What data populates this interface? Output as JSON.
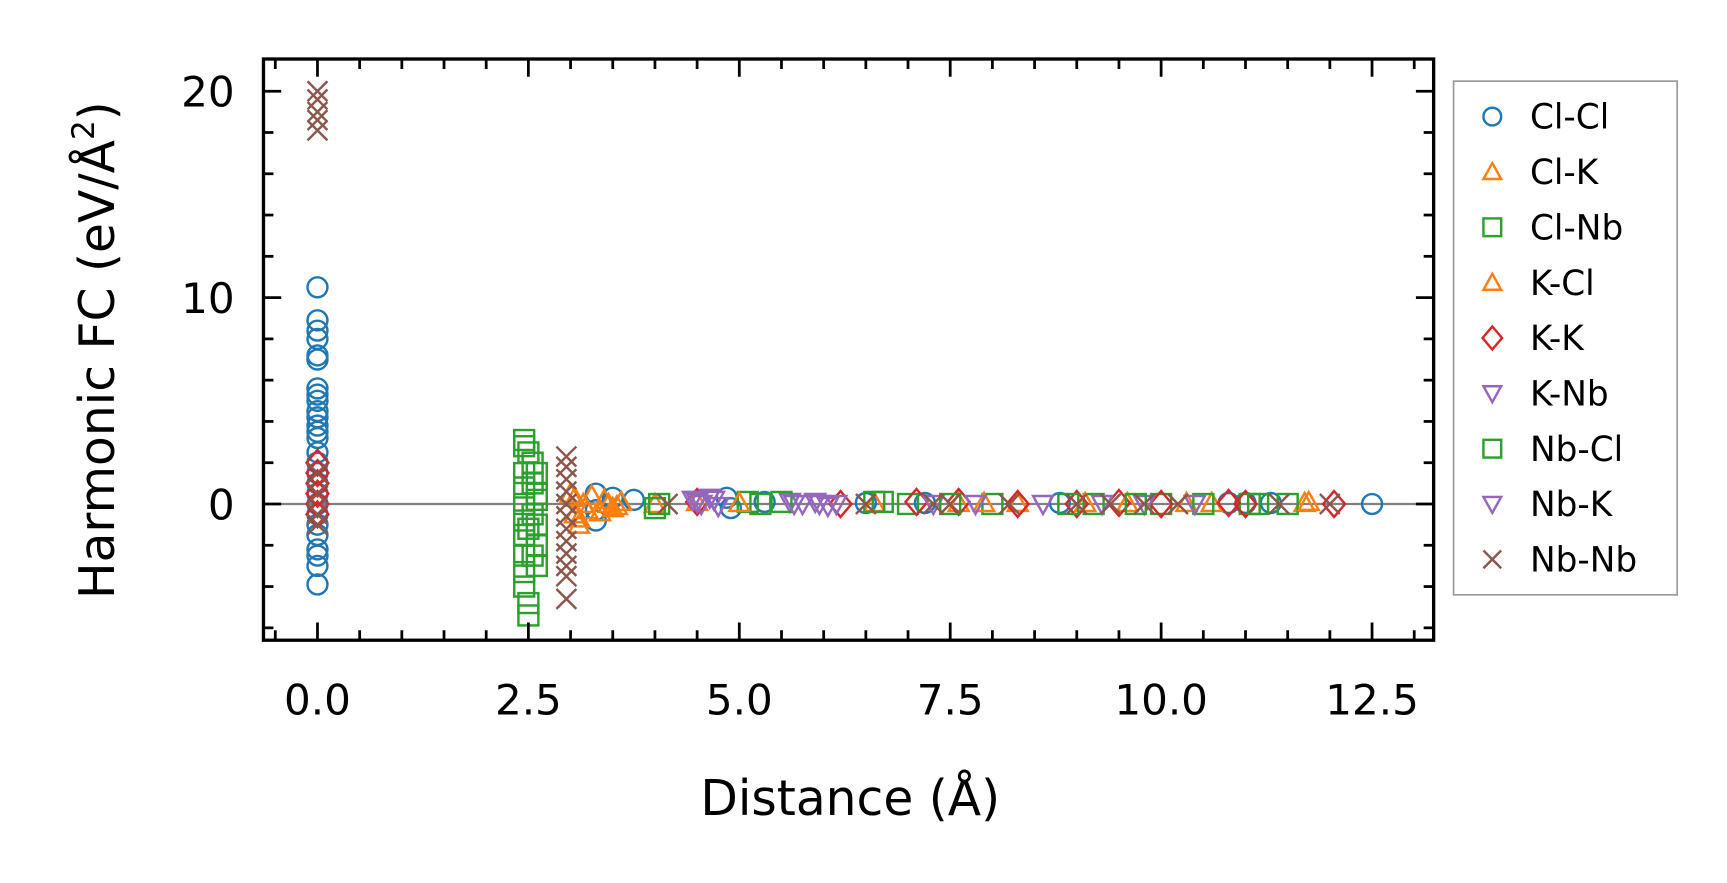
{
  "chart_data": {
    "type": "scatter",
    "title": "",
    "xlabel": "Distance (Å)",
    "ylabel_main": "Harmonic FC (eV/Å",
    "ylabel_sup": "2",
    "ylabel_close": ")",
    "ylabel": "Harmonic FC (eV/Å²)",
    "xlim": [
      -0.64,
      13.23
    ],
    "ylim": [
      -6.6,
      21.56
    ],
    "xticks": [
      0.0,
      2.5,
      5.0,
      7.5,
      10.0,
      12.5
    ],
    "xtick_labels": [
      "0.0",
      "2.5",
      "5.0",
      "7.5",
      "10.0",
      "12.5"
    ],
    "yticks": [
      0,
      10,
      20
    ],
    "ytick_labels": [
      "0",
      "10",
      "20"
    ],
    "x_minor_step": 0.5,
    "y_minor_step": 2,
    "zero_line": {
      "y": 0,
      "color": "#808080"
    },
    "grid": false,
    "legend_position": "outside-right",
    "series": [
      {
        "name": "Cl-Cl",
        "marker": "circle",
        "filled": false,
        "color": "#1f77b4",
        "points": [
          [
            0,
            10.5
          ],
          [
            0,
            8.9
          ],
          [
            0,
            8.4
          ],
          [
            0,
            8.0
          ],
          [
            0,
            7.2
          ],
          [
            0,
            7.0
          ],
          [
            0,
            5.6
          ],
          [
            0,
            5.3
          ],
          [
            0,
            5.0
          ],
          [
            0,
            4.5
          ],
          [
            0,
            4.2
          ],
          [
            0,
            3.8
          ],
          [
            0,
            3.5
          ],
          [
            0,
            3.2
          ],
          [
            0,
            2.5
          ],
          [
            0,
            2.0
          ],
          [
            0,
            1.5
          ],
          [
            0,
            1.0
          ],
          [
            0,
            0.5
          ],
          [
            0,
            0
          ],
          [
            0,
            -0.5
          ],
          [
            0,
            -1.0
          ],
          [
            0,
            -1.5
          ],
          [
            0,
            -2.2
          ],
          [
            0,
            -2.5
          ],
          [
            0,
            -3.0
          ],
          [
            0,
            -3.9
          ],
          [
            3.3,
            0.5
          ],
          [
            3.3,
            -0.3
          ],
          [
            3.3,
            -0.8
          ],
          [
            3.5,
            0.3
          ],
          [
            3.75,
            0.2
          ],
          [
            4.85,
            0.3
          ],
          [
            4.9,
            -0.2
          ],
          [
            5.3,
            0.1
          ],
          [
            6.5,
            0.05
          ],
          [
            7.2,
            0.05
          ],
          [
            8.8,
            0.05
          ],
          [
            10.8,
            0.05
          ],
          [
            11.0,
            0.05
          ],
          [
            11.3,
            0.05
          ],
          [
            12.5,
            0
          ]
        ]
      },
      {
        "name": "Cl-K",
        "marker": "triangle-up",
        "filled": false,
        "color": "#ff7f0e",
        "points": [
          [
            3.05,
            0.3
          ],
          [
            3.05,
            -0.5
          ],
          [
            3.1,
            -1.0
          ],
          [
            3.15,
            0.0
          ],
          [
            3.2,
            -0.3
          ],
          [
            3.4,
            0.2
          ],
          [
            3.5,
            -0.2
          ],
          [
            3.6,
            0.1
          ],
          [
            4.0,
            0.0
          ],
          [
            4.5,
            0.1
          ],
          [
            6.6,
            0.05
          ],
          [
            7.6,
            0.05
          ],
          [
            8.3,
            0.05
          ],
          [
            9.6,
            0.05
          ],
          [
            10.6,
            0.05
          ],
          [
            11.7,
            0.05
          ]
        ]
      },
      {
        "name": "Cl-Nb",
        "marker": "square",
        "filled": false,
        "color": "#2ca02c",
        "points": [
          [
            2.45,
            3.1
          ],
          [
            2.45,
            2.8
          ],
          [
            2.45,
            1.5
          ],
          [
            2.45,
            0.8
          ],
          [
            2.45,
            0
          ],
          [
            2.45,
            -0.8
          ],
          [
            2.45,
            -1.5
          ],
          [
            2.45,
            -2.5
          ],
          [
            2.45,
            -3.3
          ],
          [
            2.45,
            -4.0
          ],
          [
            2.5,
            -4.8
          ],
          [
            2.5,
            -5.4
          ],
          [
            2.55,
            2.0
          ],
          [
            2.55,
            1.0
          ],
          [
            2.55,
            -0.5
          ],
          [
            2.6,
            1.5
          ],
          [
            2.6,
            0.5
          ],
          [
            2.6,
            -1.0
          ],
          [
            2.6,
            -2.0
          ],
          [
            2.6,
            -3.0
          ],
          [
            4.0,
            -0.2
          ],
          [
            5.1,
            0.1
          ],
          [
            5.25,
            0.0
          ],
          [
            6.7,
            0.1
          ],
          [
            7.0,
            0.0
          ],
          [
            8.0,
            0.0
          ],
          [
            9.2,
            0.0
          ],
          [
            10.0,
            0.0
          ],
          [
            11.05,
            0.0
          ],
          [
            11.5,
            0.0
          ]
        ]
      },
      {
        "name": "K-Cl",
        "marker": "triangle-up",
        "filled": false,
        "color": "#ff7f0e",
        "points": [
          [
            3.0,
            0.5
          ],
          [
            3.1,
            -0.7
          ],
          [
            3.25,
            0.4
          ],
          [
            3.35,
            -0.4
          ],
          [
            3.45,
            0.0
          ],
          [
            3.55,
            -0.1
          ],
          [
            5.0,
            0.05
          ],
          [
            7.9,
            0.05
          ],
          [
            9.1,
            0.05
          ],
          [
            10.3,
            0.05
          ],
          [
            11.75,
            0.1
          ]
        ]
      },
      {
        "name": "K-K",
        "marker": "diamond",
        "filled": false,
        "color": "#d62728",
        "points": [
          [
            0,
            2.0
          ],
          [
            0,
            1.5
          ],
          [
            0,
            1.0
          ],
          [
            0,
            0.5
          ],
          [
            0,
            0.0
          ],
          [
            0,
            -0.5
          ],
          [
            4.5,
            0.1
          ],
          [
            6.2,
            0.0
          ],
          [
            7.1,
            0.1
          ],
          [
            7.6,
            0.1
          ],
          [
            8.3,
            0.0
          ],
          [
            9.0,
            0.0
          ],
          [
            9.5,
            0.05
          ],
          [
            10.0,
            0.0
          ],
          [
            10.8,
            0.05
          ],
          [
            11.0,
            0.0
          ],
          [
            12.05,
            0.0
          ]
        ]
      },
      {
        "name": "K-Nb",
        "marker": "triangle-down",
        "filled": false,
        "color": "#9467bd",
        "points": [
          [
            4.45,
            0.2
          ],
          [
            4.55,
            0.0
          ],
          [
            4.65,
            0.3
          ],
          [
            4.75,
            -0.1
          ],
          [
            5.6,
            0.1
          ],
          [
            5.75,
            0.0
          ],
          [
            5.9,
            0.1
          ],
          [
            6.05,
            -0.1
          ],
          [
            7.3,
            0.0
          ],
          [
            8.6,
            0.0
          ],
          [
            9.8,
            0.0
          ]
        ]
      },
      {
        "name": "Nb-Cl",
        "marker": "square",
        "filled": false,
        "color": "#2ca02c",
        "points": [
          [
            2.5,
            2.5
          ],
          [
            2.5,
            -1.2
          ],
          [
            2.55,
            -2.5
          ],
          [
            2.6,
            0.2
          ],
          [
            4.05,
            0.0
          ],
          [
            5.5,
            0.1
          ],
          [
            6.6,
            0.1
          ],
          [
            7.5,
            0.0
          ],
          [
            8.9,
            0.0
          ],
          [
            9.7,
            0.0
          ],
          [
            10.5,
            0.0
          ],
          [
            11.15,
            0.0
          ]
        ]
      },
      {
        "name": "Nb-K",
        "marker": "triangle-down",
        "filled": false,
        "color": "#9467bd",
        "points": [
          [
            4.5,
            0.1
          ],
          [
            4.7,
            0.2
          ],
          [
            5.65,
            0.0
          ],
          [
            5.95,
            0.0
          ],
          [
            6.15,
            0.0
          ],
          [
            7.8,
            0.0
          ],
          [
            9.3,
            0.0
          ],
          [
            10.4,
            0.0
          ]
        ]
      },
      {
        "name": "Nb-Nb",
        "marker": "x",
        "filled": false,
        "color": "#8c564b",
        "points": [
          [
            0,
            20.0
          ],
          [
            0,
            19.6
          ],
          [
            0,
            19.0
          ],
          [
            0,
            18.6
          ],
          [
            0,
            18.1
          ],
          [
            0,
            1.5
          ],
          [
            0,
            0.5
          ],
          [
            0,
            -0.5
          ],
          [
            0,
            -1.0
          ],
          [
            2.95,
            2.3
          ],
          [
            2.95,
            1.8
          ],
          [
            2.95,
            1.2
          ],
          [
            2.95,
            0.6
          ],
          [
            2.95,
            0.0
          ],
          [
            2.95,
            -0.6
          ],
          [
            2.95,
            -1.2
          ],
          [
            2.95,
            -1.8
          ],
          [
            2.95,
            -2.4
          ],
          [
            2.95,
            -3.0
          ],
          [
            2.95,
            -3.5
          ],
          [
            2.95,
            -4.6
          ],
          [
            4.15,
            0.0
          ],
          [
            6.5,
            0.0
          ],
          [
            7.3,
            0.0
          ],
          [
            7.5,
            0.0
          ],
          [
            8.2,
            0.0
          ],
          [
            9.0,
            0.0
          ],
          [
            9.4,
            0.0
          ],
          [
            9.8,
            0.0
          ],
          [
            10.2,
            0.0
          ],
          [
            11.4,
            0.0
          ],
          [
            12.0,
            0.0
          ]
        ]
      }
    ]
  }
}
